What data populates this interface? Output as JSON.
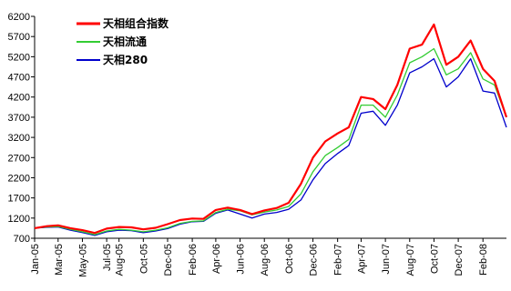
{
  "chart_data": {
    "type": "line",
    "title": "",
    "xlabel": "",
    "ylabel": "",
    "ylim": [
      700,
      6200
    ],
    "y_ticks": [
      700,
      1200,
      1700,
      2200,
      2700,
      3200,
      3700,
      4200,
      4700,
      5200,
      5700,
      6200
    ],
    "x_range": [
      "2005-01-01",
      "2008-03-31"
    ],
    "x_ticks": [
      {
        "date": "2005-01-01",
        "label": "Jan-05"
      },
      {
        "date": "2005-03-01",
        "label": "Mar-05"
      },
      {
        "date": "2005-05-01",
        "label": "May-05"
      },
      {
        "date": "2005-07-01",
        "label": "Jul-05"
      },
      {
        "date": "2005-08-01",
        "label": "Aug-05"
      },
      {
        "date": "2005-10-01",
        "label": "Oct-05"
      },
      {
        "date": "2005-12-01",
        "label": "Dec-05"
      },
      {
        "date": "2006-02-01",
        "label": "Feb-06"
      },
      {
        "date": "2006-04-01",
        "label": "Apr-06"
      },
      {
        "date": "2006-06-01",
        "label": "Jun-06"
      },
      {
        "date": "2006-08-01",
        "label": "Aug-06"
      },
      {
        "date": "2006-10-01",
        "label": "Oct-06"
      },
      {
        "date": "2006-12-01",
        "label": "Dec-06"
      },
      {
        "date": "2007-02-01",
        "label": "Feb-07"
      },
      {
        "date": "2007-04-01",
        "label": "Apr-07"
      },
      {
        "date": "2007-06-01",
        "label": "Jun-07"
      },
      {
        "date": "2007-08-01",
        "label": "Aug-07"
      },
      {
        "date": "2007-10-01",
        "label": "Oct-07"
      },
      {
        "date": "2007-12-01",
        "label": "Dec-07"
      },
      {
        "date": "2008-02-01",
        "label": "Feb-08"
      }
    ],
    "grid": false,
    "legend_position": "top-left",
    "series": [
      {
        "name": "天相组合指数",
        "color": "#ff0000",
        "x": [
          "2005-01-01",
          "2005-02-01",
          "2005-03-01",
          "2005-04-01",
          "2005-05-01",
          "2005-06-01",
          "2005-07-01",
          "2005-08-01",
          "2005-09-01",
          "2005-10-01",
          "2005-11-01",
          "2005-12-01",
          "2006-01-01",
          "2006-02-01",
          "2006-03-01",
          "2006-04-01",
          "2006-05-01",
          "2006-06-01",
          "2006-07-01",
          "2006-08-01",
          "2006-09-01",
          "2006-10-01",
          "2006-11-01",
          "2006-12-01",
          "2007-01-01",
          "2007-02-01",
          "2007-03-01",
          "2007-04-01",
          "2007-05-01",
          "2007-06-01",
          "2007-07-01",
          "2007-08-01",
          "2007-09-01",
          "2007-10-01",
          "2007-11-01",
          "2007-12-01",
          "2008-01-01",
          "2008-02-01",
          "2008-03-01",
          "2008-03-31"
        ],
        "y": [
          950,
          1000,
          1020,
          950,
          900,
          830,
          940,
          980,
          970,
          920,
          960,
          1050,
          1150,
          1190,
          1180,
          1400,
          1460,
          1400,
          1300,
          1390,
          1450,
          1580,
          2050,
          2700,
          3100,
          3300,
          3450,
          4200,
          4150,
          3900,
          4500,
          5400,
          5500,
          6000,
          5000,
          5200,
          5600,
          4900,
          4600,
          3700
        ]
      },
      {
        "name": "天相流通",
        "color": "#33cc33",
        "x": [
          "2005-01-01",
          "2005-02-01",
          "2005-03-01",
          "2005-04-01",
          "2005-05-01",
          "2005-06-01",
          "2005-07-01",
          "2005-08-01",
          "2005-09-01",
          "2005-10-01",
          "2005-11-01",
          "2005-12-01",
          "2006-01-01",
          "2006-02-01",
          "2006-03-01",
          "2006-04-01",
          "2006-05-01",
          "2006-06-01",
          "2006-07-01",
          "2006-08-01",
          "2006-09-01",
          "2006-10-01",
          "2006-11-01",
          "2006-12-01",
          "2007-01-01",
          "2007-02-01",
          "2007-03-01",
          "2007-04-01",
          "2007-05-01",
          "2007-06-01",
          "2007-07-01",
          "2007-08-01",
          "2007-09-01",
          "2007-10-01",
          "2007-11-01",
          "2007-12-01",
          "2008-01-01",
          "2008-02-01",
          "2008-03-01",
          "2008-03-31"
        ],
        "y": [
          950,
          980,
          990,
          920,
          860,
          790,
          880,
          920,
          900,
          860,
          900,
          960,
          1070,
          1120,
          1130,
          1340,
          1420,
          1380,
          1280,
          1350,
          1400,
          1490,
          1800,
          2350,
          2750,
          2950,
          3150,
          4000,
          4000,
          3700,
          4250,
          5050,
          5200,
          5400,
          4750,
          4900,
          5300,
          4650,
          4500,
          3700
        ]
      },
      {
        "name": "天相280",
        "color": "#0000cc",
        "x": [
          "2005-01-01",
          "2005-02-01",
          "2005-03-01",
          "2005-04-01",
          "2005-05-01",
          "2005-06-01",
          "2005-07-01",
          "2005-08-01",
          "2005-09-01",
          "2005-10-01",
          "2005-11-01",
          "2005-12-01",
          "2006-01-01",
          "2006-02-01",
          "2006-03-01",
          "2006-04-01",
          "2006-05-01",
          "2006-06-01",
          "2006-07-01",
          "2006-08-01",
          "2006-09-01",
          "2006-10-01",
          "2006-11-01",
          "2006-12-01",
          "2007-01-01",
          "2007-02-01",
          "2007-03-01",
          "2007-04-01",
          "2007-05-01",
          "2007-06-01",
          "2007-07-01",
          "2007-08-01",
          "2007-09-01",
          "2007-10-01",
          "2007-11-01",
          "2007-12-01",
          "2008-01-01",
          "2008-02-01",
          "2008-03-01",
          "2008-03-31"
        ],
        "y": [
          950,
          970,
          980,
          900,
          840,
          770,
          860,
          900,
          890,
          840,
          880,
          940,
          1050,
          1110,
          1120,
          1320,
          1400,
          1300,
          1200,
          1300,
          1340,
          1420,
          1650,
          2150,
          2550,
          2800,
          3000,
          3800,
          3850,
          3500,
          4000,
          4800,
          4950,
          5150,
          4450,
          4700,
          5150,
          4350,
          4300,
          3450
        ]
      }
    ]
  }
}
